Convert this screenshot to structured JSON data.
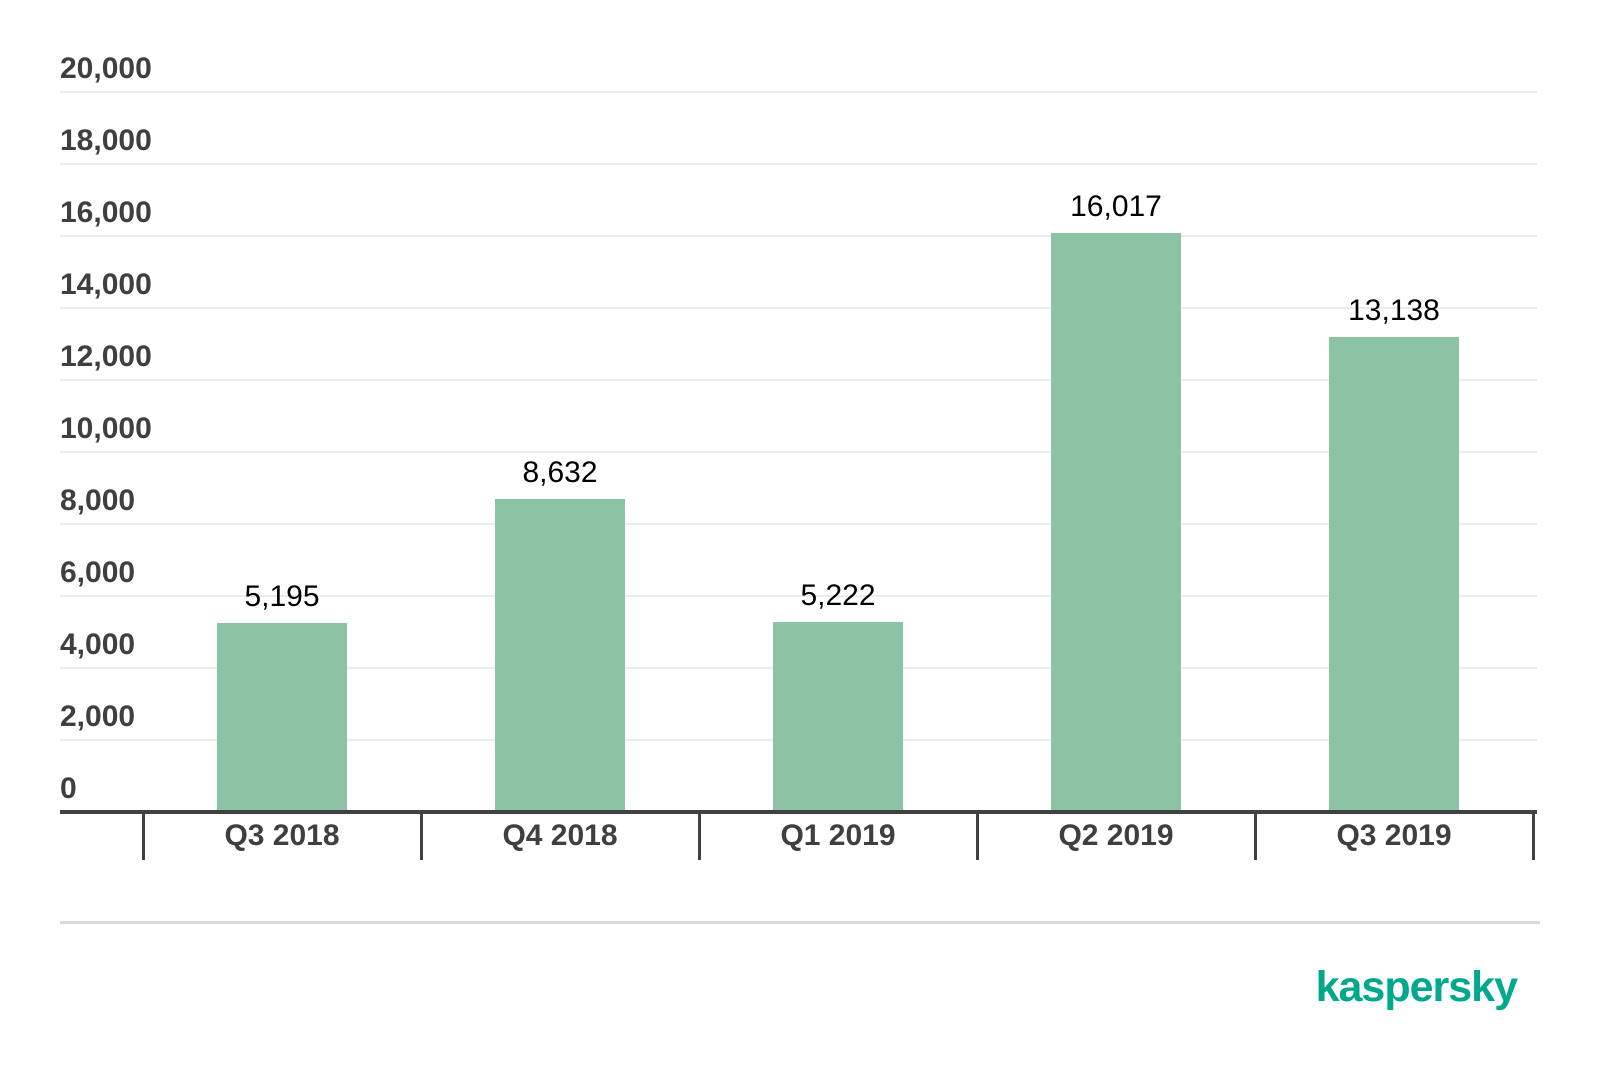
{
  "chart_data": {
    "type": "bar",
    "title": "",
    "categories": [
      "Q3 2018",
      "Q4 2018",
      "Q1 2019",
      "Q2 2019",
      "Q3 2019"
    ],
    "values": [
      5195,
      8632,
      5222,
      16017,
      13138
    ],
    "value_labels": [
      "5,195",
      "8,632",
      "5,222",
      "16,017",
      "13,138"
    ],
    "xlabel": "",
    "ylabel": "",
    "ylim": [
      0,
      20000
    ],
    "ytick_step": 2000,
    "ytick_labels": [
      "0",
      "2,000",
      "4,000",
      "6,000",
      "8,000",
      "10,000",
      "12,000",
      "14,000",
      "16,000",
      "18,000",
      "20,000"
    ],
    "grid": "horizontal",
    "legend": "none",
    "bar_color": "#8CC3A4"
  },
  "colors": {
    "bar": "#8CC3A4",
    "axis": "#414141",
    "axis_label": "#3F3F3F",
    "value_label": "#000000",
    "gridline": "#ECECEC",
    "divider": "#DBDBDB",
    "logo": "#00A88E",
    "background": "#FFFFFF"
  },
  "footer": {
    "logo_text": "kaspersky"
  }
}
